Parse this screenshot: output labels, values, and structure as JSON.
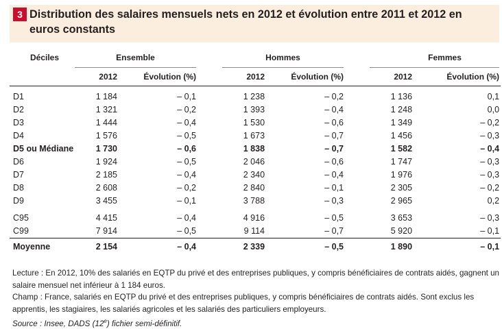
{
  "badge": "3",
  "title": "Distribution des salaires mensuels nets en 2012 et évolution entre 2011 et 2012 en euros constants",
  "table": {
    "row_header": "Déciles",
    "groups": [
      "Ensemble",
      "Hommes",
      "Femmes"
    ],
    "sub_headers": [
      "2012",
      "Évolution (%)",
      "2012",
      "Évolution (%)",
      "2012",
      "Évolution (%)"
    ],
    "rows": [
      {
        "label": "D1",
        "cells": [
          "1 184",
          "– 0,1",
          "1 238",
          "– 0,2",
          "1 136",
          "0,1"
        ]
      },
      {
        "label": "D2",
        "cells": [
          "1 321",
          "– 0,2",
          "1 393",
          "– 0,4",
          "1 248",
          "0,0"
        ]
      },
      {
        "label": "D3",
        "cells": [
          "1 444",
          "– 0,4",
          "1 530",
          "– 0,6",
          "1 349",
          "– 0,2"
        ]
      },
      {
        "label": "D4",
        "cells": [
          "1 576",
          "– 0,5",
          "1 673",
          "– 0,7",
          "1 456",
          "– 0,3"
        ]
      },
      {
        "label": "D5 ou Médiane",
        "cells": [
          "1 730",
          "– 0,6",
          "1 838",
          "– 0,7",
          "1 582",
          "– 0,4"
        ]
      },
      {
        "label": "D6",
        "cells": [
          "1 924",
          "– 0,5",
          "2 046",
          "– 0,6",
          "1 747",
          "– 0,3"
        ]
      },
      {
        "label": "D7",
        "cells": [
          "2 185",
          "– 0,4",
          "2 340",
          "– 0,4",
          "1 976",
          "– 0,3"
        ]
      },
      {
        "label": "D8",
        "cells": [
          "2 608",
          "– 0,2",
          "2 840",
          "– 0,1",
          "2 305",
          "– 0,2"
        ]
      },
      {
        "label": "D9",
        "cells": [
          "3 455",
          "– 0,1",
          "3 788",
          "– 0,3",
          "2 965",
          "0,2"
        ]
      },
      {
        "label": "C95",
        "cells": [
          "4 415",
          "– 0,4",
          "4 916",
          "– 0,5",
          "3 653",
          "– 0,3"
        ]
      },
      {
        "label": "C99",
        "cells": [
          "7 914",
          "– 0,5",
          "9 114",
          "– 0,7",
          "5 920",
          "– 0,1"
        ]
      },
      {
        "label": "Moyenne",
        "cells": [
          "2 154",
          "– 0,4",
          "2 339",
          "– 0,5",
          "1 890",
          "– 0,1"
        ]
      }
    ]
  },
  "notes": {
    "lecture": "Lecture : En 2012, 10% des salariés en EQTP du privé et des entreprises publiques, y compris bénéficiaires de contrats aidés, gagnent un salaire mensuel net inférieur à 1 184 euros.",
    "champ": "Champ : France, salariés en EQTP du privé et des entreprises publiques, y compris bénéficiaires de contrats aidés. Sont exclus les apprentis, les stagiaires, les salariés agricoles et les salariés des particuliers employeurs.",
    "source": "Source : Insee, DADS (12e) fichier semi-définitif."
  }
}
